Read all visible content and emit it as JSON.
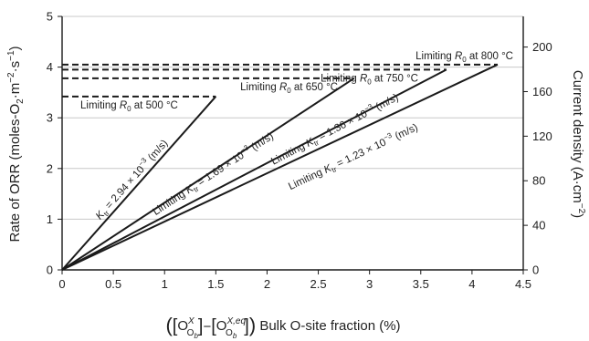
{
  "chart_data": {
    "type": "line",
    "xlabel": {
      "paren_open": "(",
      "bracket1_open": "[",
      "bracket1_base": "O",
      "bracket1_sup": "X",
      "bracket1_sub": "O",
      "bracket1_subsub": "b",
      "bracket1_close": "]",
      "minus": "−",
      "bracket2_open": "[",
      "bracket2_base": "O",
      "bracket2_sup": "X,eq",
      "bracket2_sub": "O",
      "bracket2_subsub": "b",
      "bracket2_close": "]",
      "paren_close": ")",
      "tail": " Bulk O-site fraction (%)"
    },
    "ylabel_left": {
      "prefix": "Rate of ORR (moles-O",
      "o_sub": "2",
      "middle1": "·m",
      "m_sup": "−2",
      "middle2": "·s",
      "s_sup": "−1",
      "suffix": ")"
    },
    "ylabel_right": {
      "prefix": "Current density (A·cm",
      "sup": "−2",
      "suffix": ")"
    },
    "xlim": [
      0,
      4.5
    ],
    "ylim_left": [
      0,
      5
    ],
    "ylim_right": [
      0,
      227.5
    ],
    "x_ticks": [
      0,
      0.5,
      1,
      1.5,
      2,
      2.5,
      3,
      3.5,
      4,
      4.5
    ],
    "x_tick_labels": [
      "0",
      "0.5",
      "1",
      "1.5",
      "2",
      "2.5",
      "3",
      "3.5",
      "4",
      "4.5"
    ],
    "y_left_ticks": [
      0,
      1,
      2,
      3,
      4,
      5
    ],
    "y_left_tick_labels": [
      "0",
      "1",
      "2",
      "3",
      "4",
      "5"
    ],
    "y_right_ticks": [
      0,
      40,
      80,
      120,
      160,
      200
    ],
    "y_right_tick_labels": [
      "0",
      "40",
      "80",
      "120",
      "160",
      "200"
    ],
    "grid": "horizontal",
    "series": [
      {
        "x": [
          0,
          1.5
        ],
        "y": [
          0,
          3.42
        ],
        "label": {
          "k": "K",
          "sub": "tr",
          "text": " = 2.94 × 10",
          "sup": "−3",
          "unit": " (m/s)"
        }
      },
      {
        "x": [
          0,
          2.85
        ],
        "y": [
          0,
          3.78
        ],
        "label": {
          "pre": "Limiting ",
          "k": "K",
          "sub": "tr",
          "text": " = 1.69 × 10",
          "sup": "−3",
          "unit": " (m/s)"
        }
      },
      {
        "x": [
          0,
          3.75
        ],
        "y": [
          0,
          3.95
        ],
        "label": {
          "pre": "Limiting ",
          "k": "K",
          "sub": "tr",
          "text": " = 1.36 × 10",
          "sup": "−3",
          "unit": " (m/s)"
        }
      },
      {
        "x": [
          0,
          4.25
        ],
        "y": [
          0,
          4.05
        ],
        "label": {
          "pre": "Limiting ",
          "k": "K",
          "sub": "tr",
          "text": " = 1.23 × 10",
          "sup": "−3",
          "unit": " (m/s)"
        }
      }
    ],
    "limits": [
      {
        "y": 4.05,
        "x_end": 4.25,
        "label": {
          "pre": "Limiting ",
          "r": "R",
          "sub": "0",
          "post": " at 800 °C"
        }
      },
      {
        "y": 3.95,
        "x_end": 3.75,
        "label": {
          "pre": "Limiting ",
          "r": "R",
          "sub": "0",
          "post": " at 750 °C"
        }
      },
      {
        "y": 3.78,
        "x_end": 2.85,
        "label": {
          "pre": "Limiting ",
          "r": "R",
          "sub": "0",
          "post": " at 650 °C"
        }
      },
      {
        "y": 3.42,
        "x_end": 1.5,
        "label": {
          "pre": "Limiting ",
          "r": "R",
          "sub": "0",
          "post": " at 500 °C"
        }
      }
    ]
  }
}
